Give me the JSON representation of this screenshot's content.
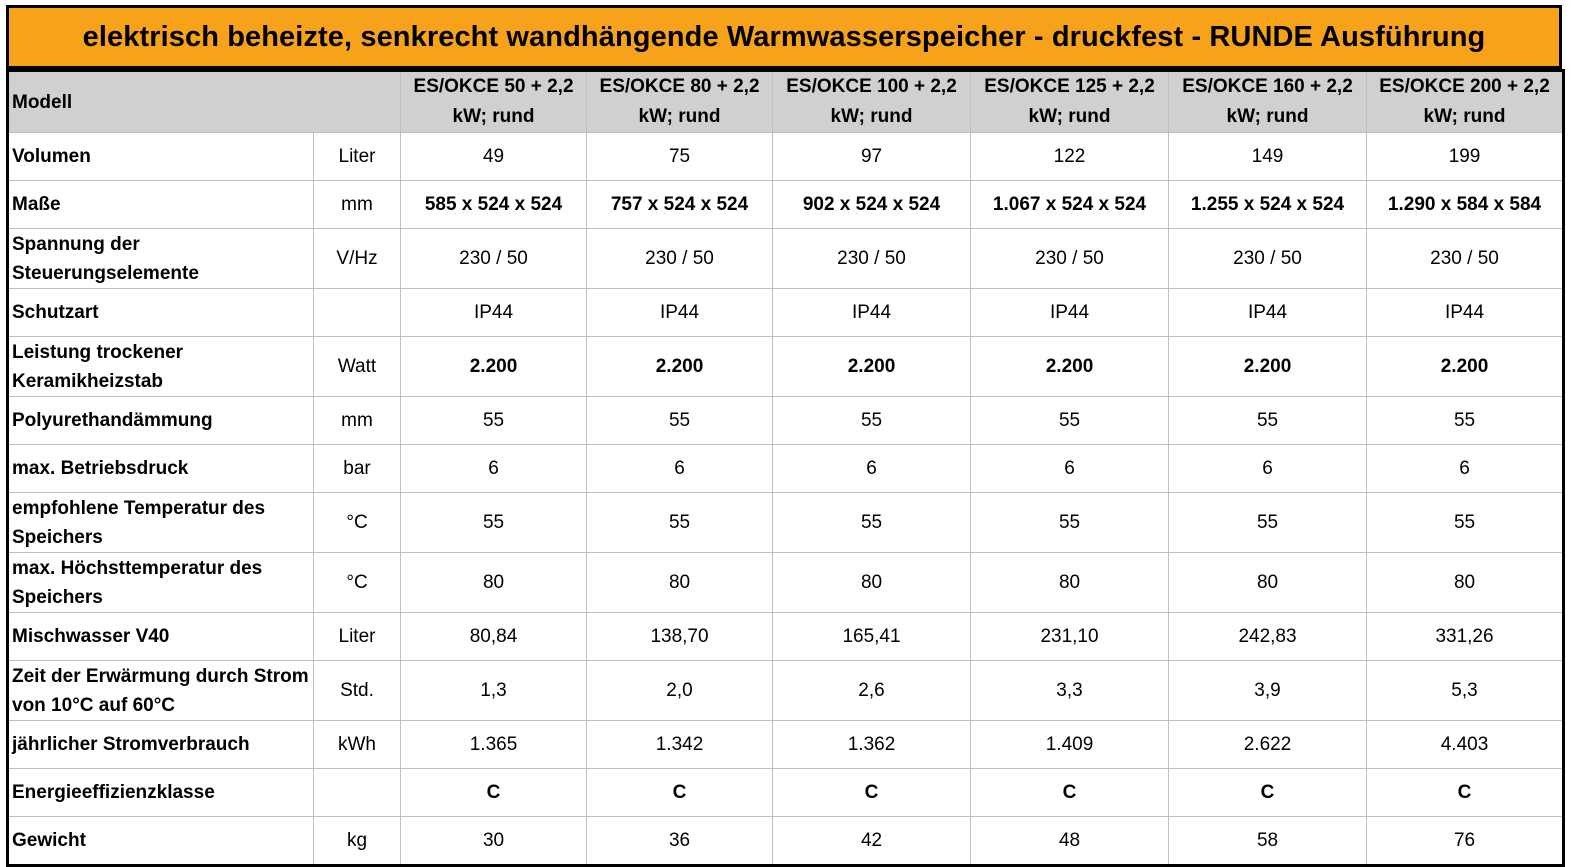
{
  "title": "elektrisch beheizte, senkrecht wandhängende Warmwasserspeicher - druckfest - RUNDE Ausführung",
  "colors": {
    "title_bg": "#f7a21b",
    "header_bg": "#d0d0d0",
    "grid": "#bfbfbf"
  },
  "header": {
    "label": "Modell",
    "models": [
      "ES/OKCE 50 + 2,2 kW; rund",
      "ES/OKCE 80 + 2,2 kW; rund",
      "ES/OKCE 100 + 2,2 kW; rund",
      "ES/OKCE 125 + 2,2 kW; rund",
      "ES/OKCE 160 + 2,2 kW; rund",
      "ES/OKCE 200 + 2,2 kW; rund"
    ]
  },
  "rows": [
    {
      "label": "Volumen",
      "unit": "Liter",
      "values": [
        "49",
        "75",
        "97",
        "122",
        "149",
        "199"
      ]
    },
    {
      "label": "Maße",
      "unit": "mm",
      "values": [
        "585 x 524 x 524",
        "757 x 524 x 524",
        "902 x 524 x 524",
        "1.067 x 524 x 524",
        "1.255 x 524 x 524",
        "1.290 x 584 x 584"
      ]
    },
    {
      "label": "Spannung der Steuerungselemente",
      "unit": "V/Hz",
      "values": [
        "230 / 50",
        "230 / 50",
        "230 / 50",
        "230 / 50",
        "230 / 50",
        "230 / 50"
      ]
    },
    {
      "label": "Schutzart",
      "unit": "",
      "values": [
        "IP44",
        "IP44",
        "IP44",
        "IP44",
        "IP44",
        "IP44"
      ]
    },
    {
      "label": "Leistung trockener Keramikheizstab",
      "unit": "Watt",
      "values": [
        "2.200",
        "2.200",
        "2.200",
        "2.200",
        "2.200",
        "2.200"
      ]
    },
    {
      "label": "Polyurethandämmung",
      "unit": "mm",
      "values": [
        "55",
        "55",
        "55",
        "55",
        "55",
        "55"
      ]
    },
    {
      "label": "max. Betriebsdruck",
      "unit": "bar",
      "values": [
        "6",
        "6",
        "6",
        "6",
        "6",
        "6"
      ]
    },
    {
      "label": "empfohlene Temperatur des Speichers",
      "unit": "°C",
      "values": [
        "55",
        "55",
        "55",
        "55",
        "55",
        "55"
      ]
    },
    {
      "label": "max. Höchsttemperatur des Speichers",
      "unit": "°C",
      "values": [
        "80",
        "80",
        "80",
        "80",
        "80",
        "80"
      ]
    },
    {
      "label": "Mischwasser V40",
      "unit": "Liter",
      "values": [
        "80,84",
        "138,70",
        "165,41",
        "231,10",
        "242,83",
        "331,26"
      ]
    },
    {
      "label": "Zeit der Erwärmung durch Strom von 10°C auf 60°C",
      "unit": "Std.",
      "values": [
        "1,3",
        "2,0",
        "2,6",
        "3,3",
        "3,9",
        "5,3"
      ]
    },
    {
      "label": "jährlicher Stromverbrauch",
      "unit": "kWh",
      "values": [
        "1.365",
        "1.342",
        "1.362",
        "1.409",
        "2.622",
        "4.403"
      ]
    },
    {
      "label": "Energieeffizienzklasse",
      "unit": "",
      "values": [
        "C",
        "C",
        "C",
        "C",
        "C",
        "C"
      ]
    },
    {
      "label": "Gewicht",
      "unit": "kg",
      "values": [
        "30",
        "36",
        "42",
        "48",
        "58",
        "76"
      ]
    }
  ]
}
